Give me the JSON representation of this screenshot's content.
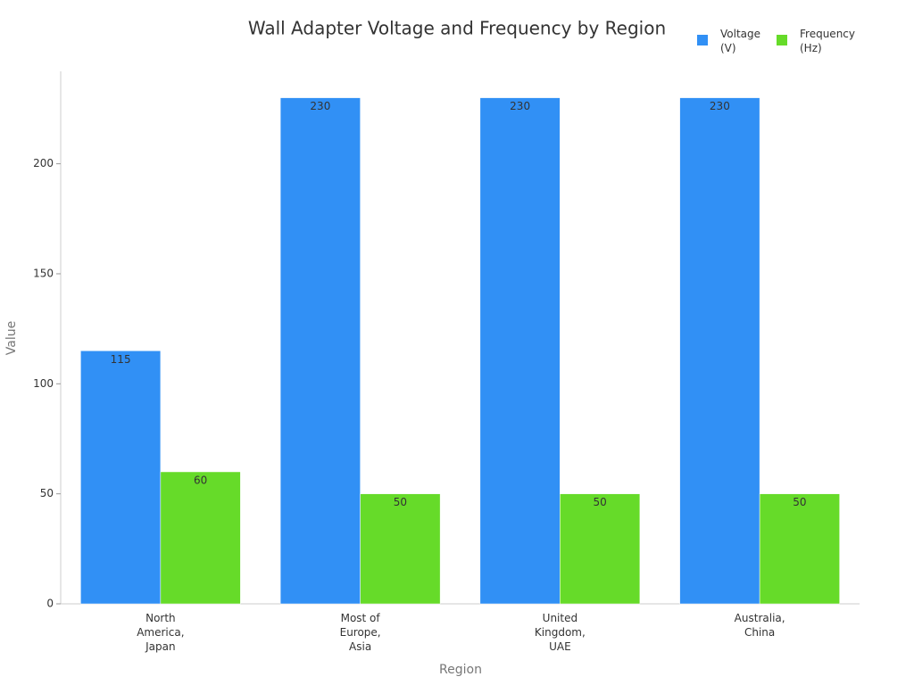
{
  "chart_data": {
    "type": "bar",
    "title": "Wall Adapter Voltage and Frequency by Region",
    "x_label": "Region",
    "y_label": "Value",
    "categories": [
      "North America, Japan",
      "Most of Europe, Asia",
      "United Kingdom, UAE",
      "Australia, China"
    ],
    "series": [
      {
        "name": "Voltage (V)",
        "color": "#3190f5",
        "values": [
          115,
          230,
          230,
          230
        ]
      },
      {
        "name": "Frequency (Hz)",
        "color": "#66db29",
        "values": [
          60,
          50,
          50,
          50
        ]
      }
    ],
    "ylim": [
      0,
      242
    ],
    "yticks": [
      0,
      50,
      100,
      150,
      200
    ],
    "legend": "top-right"
  }
}
